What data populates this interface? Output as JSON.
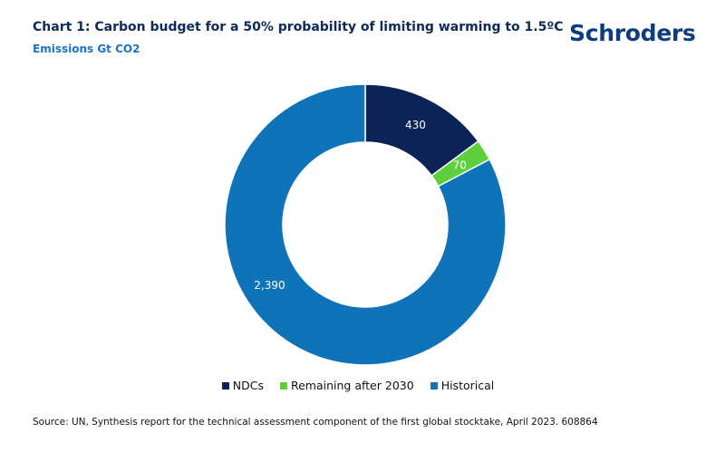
{
  "header": {
    "title": "Chart 1: Carbon budget for a 50% probability of limiting warming to 1.5ºC",
    "subtitle": "Emissions Gt CO2",
    "logo": "Schroders"
  },
  "chart_data": {
    "type": "pie",
    "variant": "donut",
    "categories": [
      "NDCs",
      "Remaining after 2030",
      "Historical"
    ],
    "values": [
      430,
      70,
      2390
    ],
    "value_labels": [
      "430",
      "70",
      "2,390"
    ],
    "colors": [
      "#0b2356",
      "#5ccf3a",
      "#0e73b9"
    ],
    "legend_position": "bottom"
  },
  "footer": {
    "source": "Source: UN, Synthesis report for the technical assessment component of the first global stocktake, April 2023. 608864"
  }
}
